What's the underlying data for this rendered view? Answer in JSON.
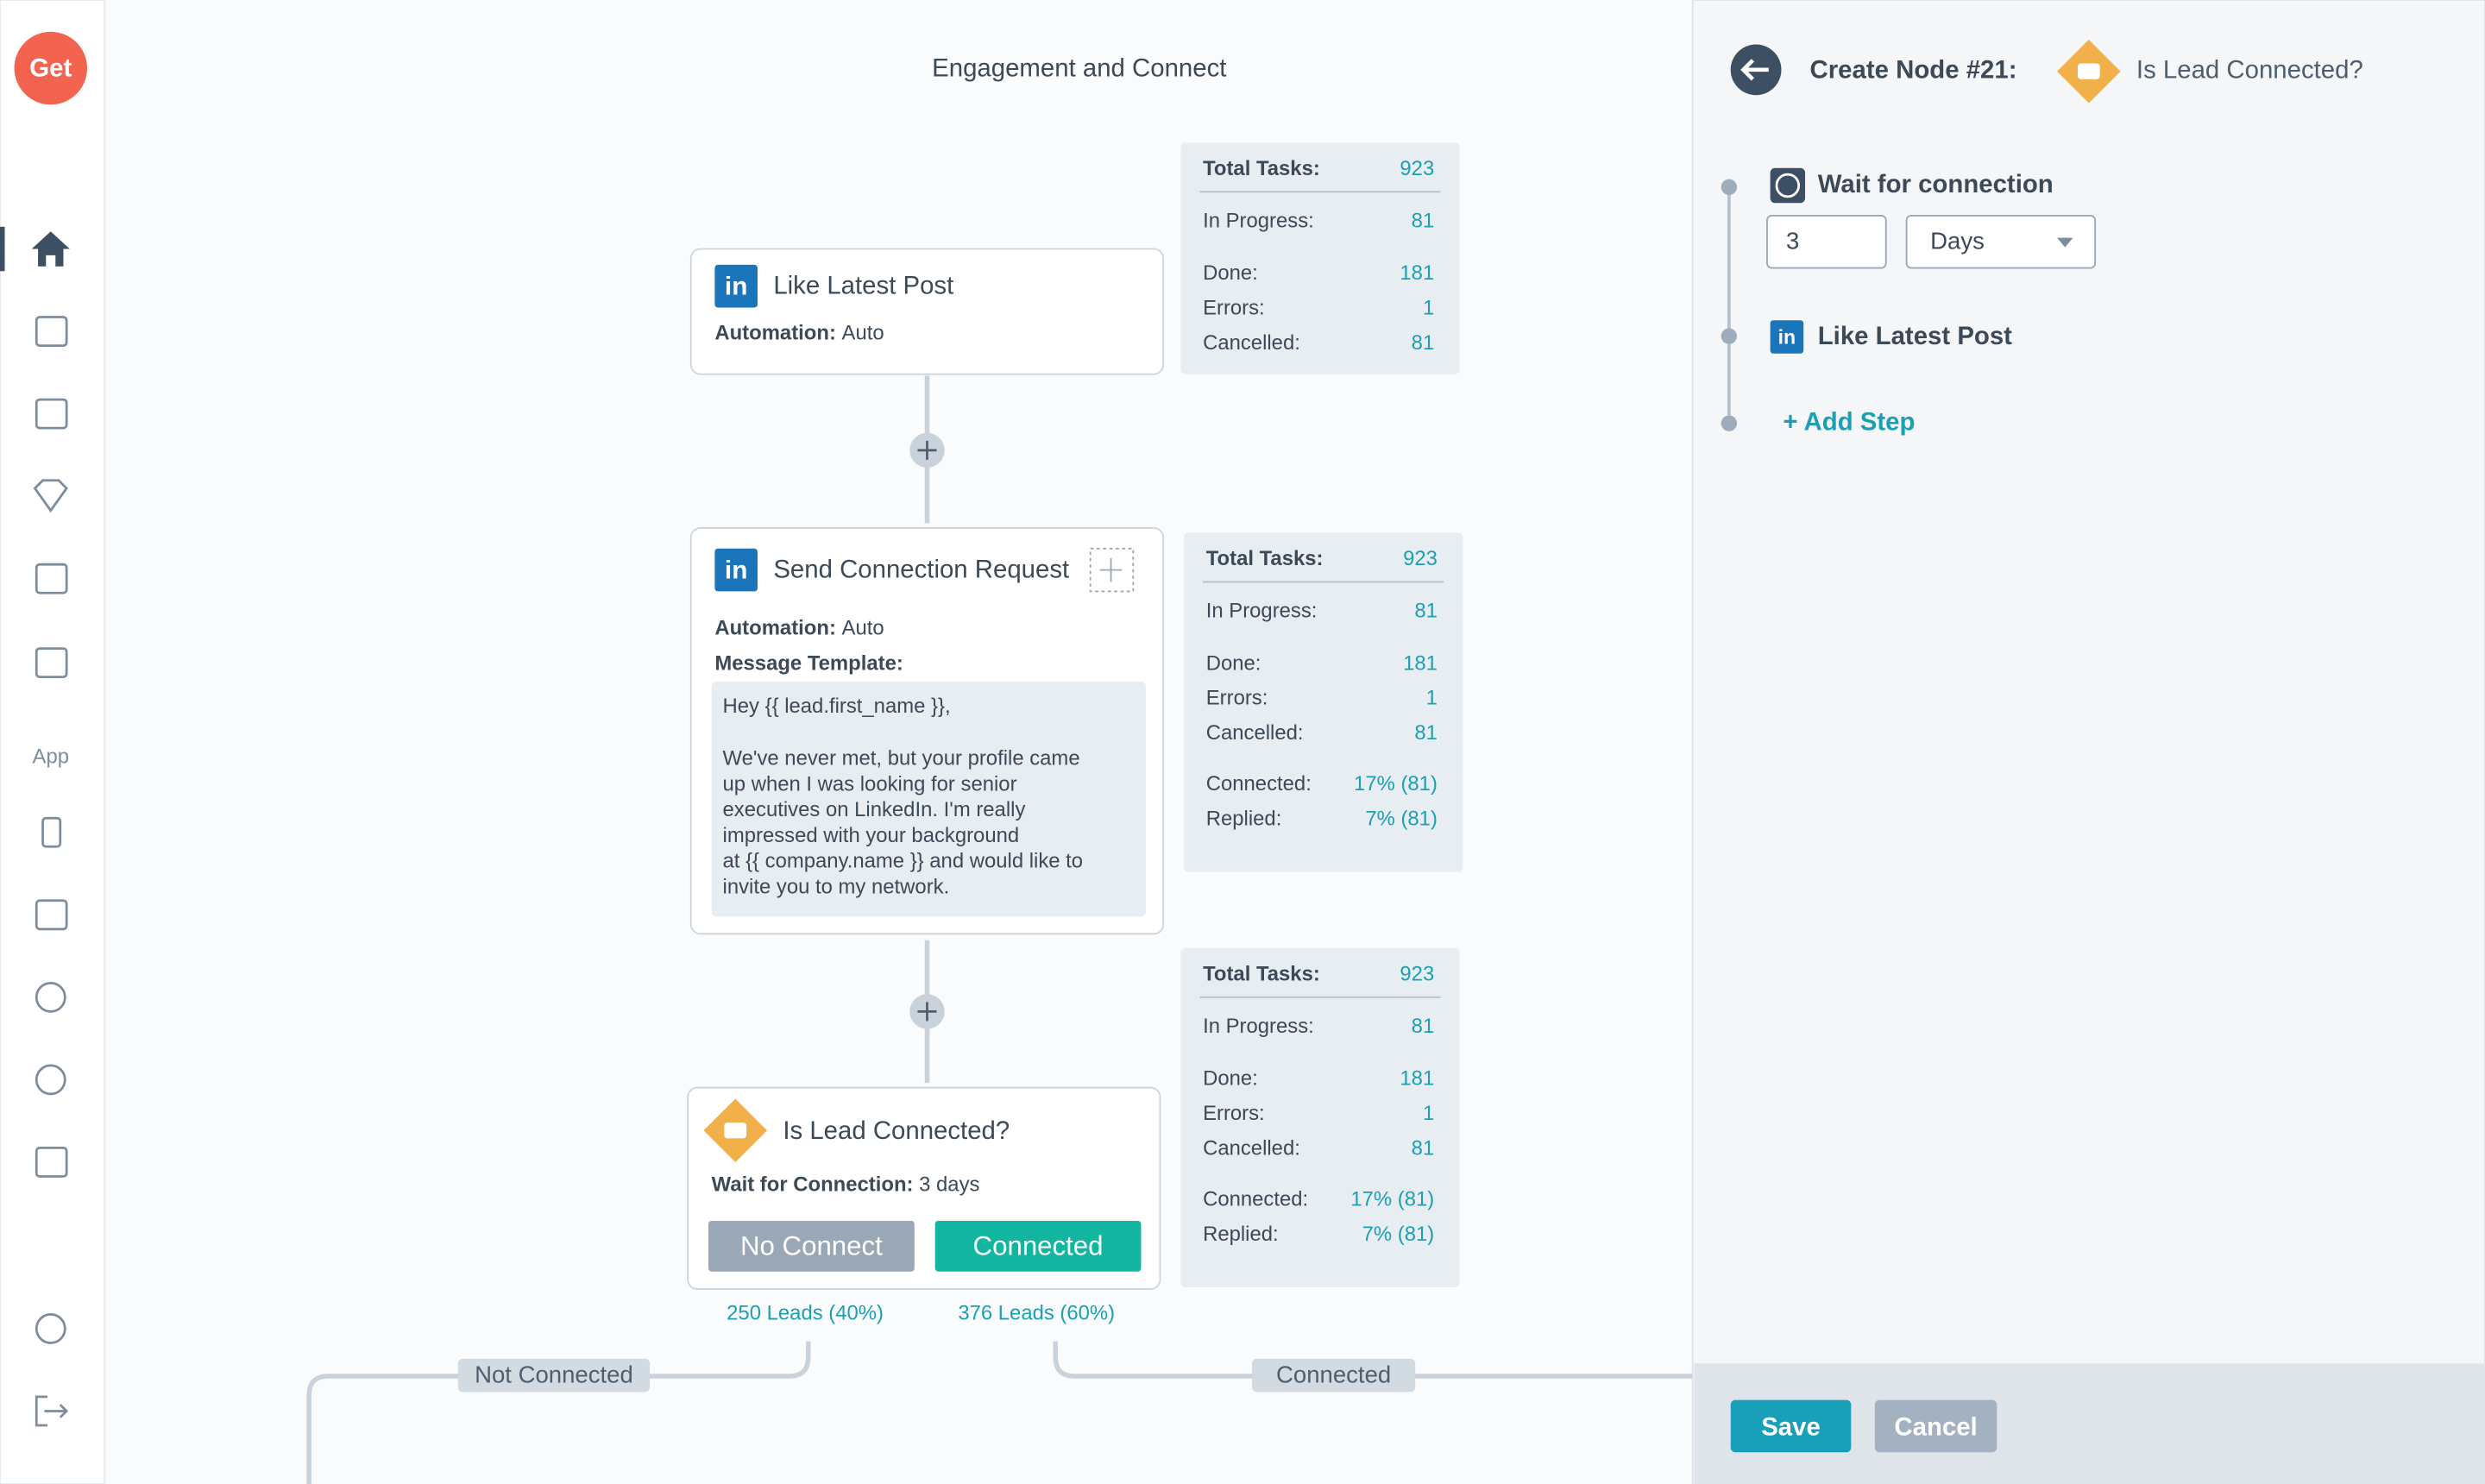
{
  "logo": "Get",
  "sidebar": {
    "app_label": "App"
  },
  "canvas": {
    "title": "Engagement and Connect",
    "nodes": [
      {
        "title": "Like Latest Post",
        "automation_label": "Automation:",
        "automation": "Auto"
      },
      {
        "title": "Send Connection Request",
        "automation_label": "Automation:",
        "automation": "Auto",
        "template_label": "Message Template:",
        "template_lines": [
          "Hey {{ lead.first_name }},",
          "We've never met, but your profile came",
          "up when I was looking for senior",
          "executives on LinkedIn. I'm really",
          "impressed with your background",
          "at {{ company.name }} and would like to",
          "invite you to my network."
        ]
      },
      {
        "title": "Is Lead Connected?",
        "wait_label": "Wait for Connection:",
        "wait": "3 days",
        "buttons": [
          "No Connect",
          "Connected"
        ],
        "branch_counts": [
          "250 Leads (40%)",
          "376 Leads (60%)"
        ]
      }
    ],
    "stats": [
      {
        "rows": [
          [
            "Total Tasks:",
            923
          ],
          [
            "In Progress:",
            81
          ],
          [
            "Done:",
            181
          ],
          [
            "Errors:",
            1
          ],
          [
            "Cancelled:",
            81
          ]
        ]
      },
      {
        "rows": [
          [
            "Total Tasks:",
            923
          ],
          [
            "In Progress:",
            81
          ],
          [
            "Done:",
            181
          ],
          [
            "Errors:",
            1
          ],
          [
            "Cancelled:",
            81
          ],
          [
            "Connected:",
            "17% (81)"
          ],
          [
            "Replied:",
            "7% (81)"
          ]
        ]
      },
      {
        "rows": [
          [
            "Total Tasks:",
            923
          ],
          [
            "In Progress:",
            81
          ],
          [
            "Done:",
            181
          ],
          [
            "Errors:",
            1
          ],
          [
            "Cancelled:",
            81
          ],
          [
            "Connected:",
            "17% (81)"
          ],
          [
            "Replied:",
            "7% (81)"
          ]
        ]
      }
    ],
    "branches": [
      "Not Connected",
      "Connected"
    ]
  },
  "panel": {
    "heading": "Create Node #21:",
    "node_title": "Is Lead Connected?",
    "steps": [
      {
        "title": "Wait for connection",
        "amount": "3",
        "unit": "Days"
      },
      {
        "title": "Like Latest Post"
      }
    ],
    "add_step": "+ Add Step",
    "buttons": [
      "Save",
      "Cancel"
    ]
  }
}
